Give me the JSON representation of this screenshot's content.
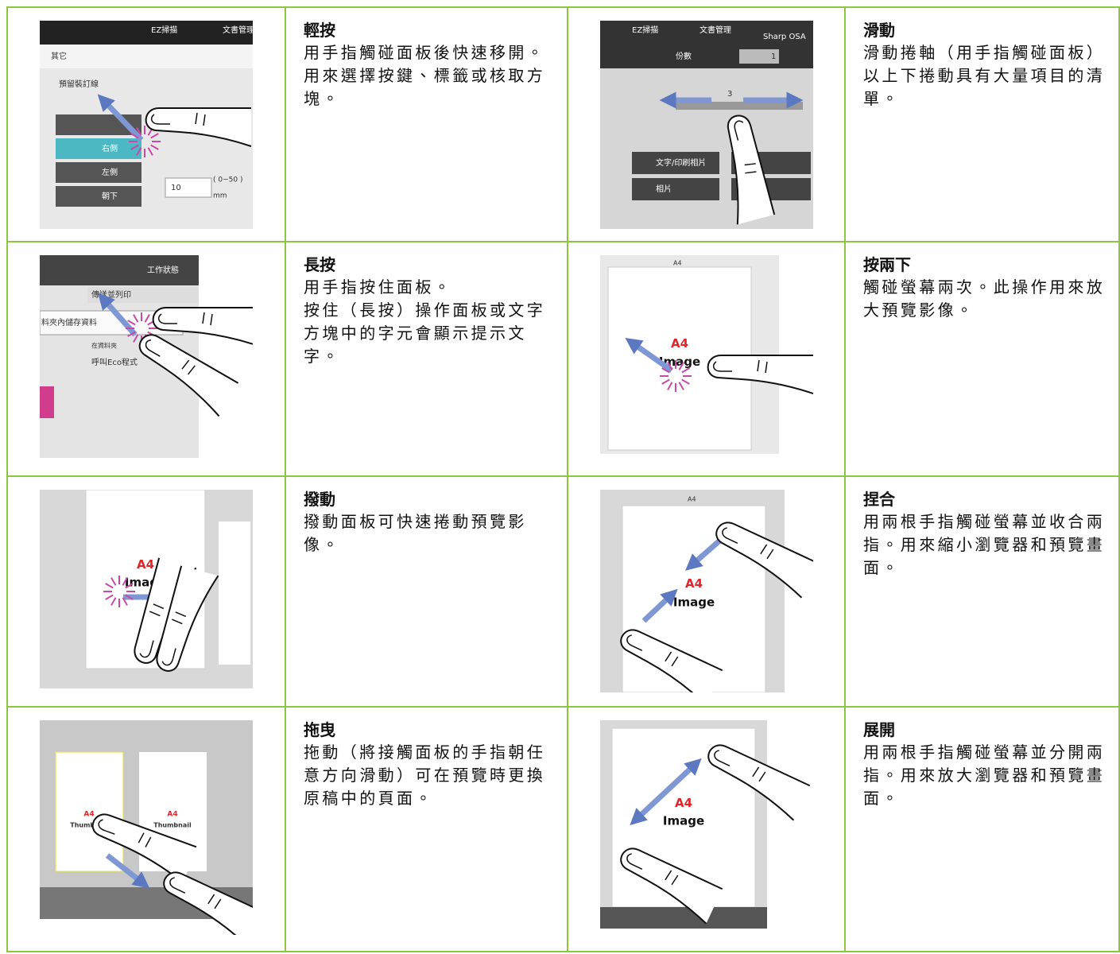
{
  "gestures": [
    {
      "title": "輕按",
      "desc": [
        "用手指觸碰面板後快速移開。",
        "用來選擇按鍵、標籤或核取方塊。"
      ],
      "screen": [
        "EZ掃描",
        "文書管理",
        "其它",
        "預留裝訂線",
        "右側",
        "左側",
        "朝下",
        "10",
        "( 0~50 )",
        "mm"
      ]
    },
    {
      "title": "滑動",
      "desc": [
        "滑動捲軸（用手指觸碰面板）以上下捲動具有大量項目的清單。"
      ],
      "screen": [
        "EZ掃描",
        "文書管理",
        "Sharp OSA",
        "份數",
        "1",
        "3",
        "文字/印刷相片",
        "相片"
      ]
    },
    {
      "title": "長按",
      "desc": [
        "用手指按住面板。",
        "按住（長按）操作面板或文字方塊中的字元會顯示提示文字。"
      ],
      "screen": [
        "工作狀態",
        "傳送並列印",
        "料夾內儲存資料",
        "在資料夾",
        "呼叫Eco程式"
      ]
    },
    {
      "title": "按兩下",
      "desc": [
        "觸碰螢幕兩次。此操作用來放大預覽影像。"
      ],
      "screen": [
        "A4",
        "A4",
        "Image"
      ]
    },
    {
      "title": "撥動",
      "desc": [
        "撥動面板可快速捲動預覽影像。"
      ],
      "screen": [
        "A4",
        "Image"
      ]
    },
    {
      "title": "捏合",
      "desc": [
        "用兩根手指觸碰螢幕並收合兩指。用來縮小瀏覽器和預覽畫面。"
      ],
      "screen": [
        "A4",
        "A4",
        "Image"
      ]
    },
    {
      "title": "拖曳",
      "desc": [
        "拖動（將接觸面板的手指朝任意方向滑動）可在預覽時更換原稿中的頁面。"
      ],
      "screen": [
        "A4",
        "Thumbnail",
        "A4",
        "Thumbnail"
      ]
    },
    {
      "title": "展開",
      "desc": [
        "用兩根手指觸碰螢幕並分開兩指。用來放大瀏覽器和預覽畫面。"
      ],
      "screen": [
        "A4",
        "Image"
      ]
    }
  ]
}
